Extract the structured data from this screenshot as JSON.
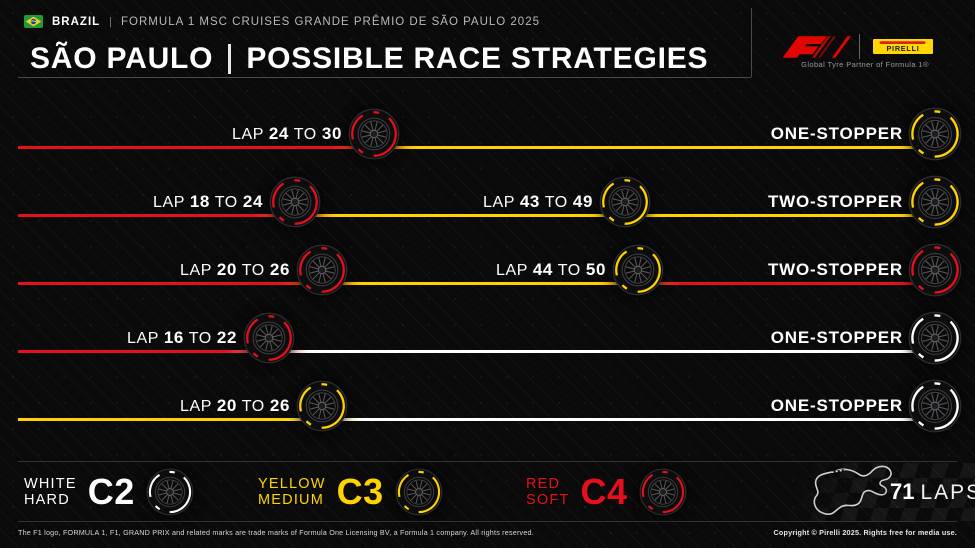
{
  "header": {
    "country": "BRAZIL",
    "separator": "|",
    "event": "FORMULA 1 MSC CRUISES GRANDE PRÊMIO DE SÃO PAULO 2025",
    "title_left": "SÃO PAULO",
    "title_right": "POSSIBLE RACE STRATEGIES",
    "f1_logo_alt": "F1",
    "pirelli_logo_text": "PIRELLI",
    "partner_caption": "Global Tyre Partner of Formula 1®"
  },
  "labels": {
    "lap_word": "LAP",
    "to_word": "TO"
  },
  "compounds": {
    "hard": {
      "code": "C2",
      "color_name": "WHITE",
      "name": "HARD",
      "color": "#ffffff"
    },
    "medium": {
      "code": "C3",
      "color_name": "YELLOW",
      "name": "MEDIUM",
      "color": "#ffd300"
    },
    "soft": {
      "code": "C4",
      "color_name": "RED",
      "name": "SOFT",
      "color": "#e6101c"
    }
  },
  "chart_data": {
    "type": "table",
    "title": "SÃO PAULO | POSSIBLE RACE STRATEGIES",
    "total_laps": 71,
    "strategies": [
      {
        "label": "ONE-STOPPER",
        "stints": [
          "soft",
          "medium"
        ],
        "pit_windows": [
          {
            "from": "24",
            "to": "30"
          }
        ]
      },
      {
        "label": "TWO-STOPPER",
        "stints": [
          "soft",
          "medium",
          "medium"
        ],
        "pit_windows": [
          {
            "from": "18",
            "to": "24"
          },
          {
            "from": "43",
            "to": "49"
          }
        ]
      },
      {
        "label": "TWO-STOPPER",
        "stints": [
          "soft",
          "medium",
          "soft"
        ],
        "pit_windows": [
          {
            "from": "20",
            "to": "26"
          },
          {
            "from": "44",
            "to": "50"
          }
        ]
      },
      {
        "label": "ONE-STOPPER",
        "stints": [
          "soft",
          "hard"
        ],
        "pit_windows": [
          {
            "from": "16",
            "to": "22"
          }
        ]
      },
      {
        "label": "ONE-STOPPER",
        "stints": [
          "medium",
          "hard"
        ],
        "pit_windows": [
          {
            "from": "20",
            "to": "26"
          }
        ]
      }
    ]
  },
  "legend_section": {
    "order": [
      "hard",
      "medium",
      "soft"
    ],
    "laps_value": "71",
    "laps_label": "LAPS"
  },
  "footer": {
    "left": "The F1 logo, FORMULA 1, F1, GRAND PRIX and related marks are trade marks of Formula One Licensing BV, a Formula 1 company. All rights reserved.",
    "right": "Copyright © Pirelli 2025. Rights free for media use."
  }
}
